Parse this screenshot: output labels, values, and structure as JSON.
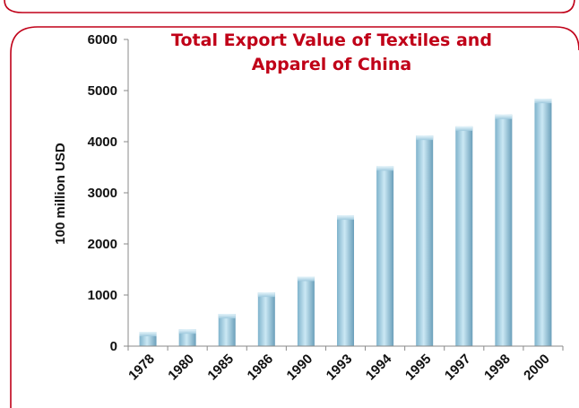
{
  "chart_data": {
    "type": "bar",
    "title_lines": [
      "Total Export Value of Textiles and",
      "Apparel of China"
    ],
    "xlabel": "",
    "ylabel": "100 million USD",
    "ylim": [
      0,
      6000
    ],
    "yticks": [
      "0",
      "1000",
      "2000",
      "3000",
      "4000",
      "5000",
      "6000"
    ],
    "categories": [
      "1978",
      "1980",
      "1985",
      "1986",
      "1990",
      "1993",
      "1994",
      "1995",
      "1997",
      "1998",
      "2000"
    ],
    "values": [
      280,
      330,
      630,
      1050,
      1360,
      2560,
      3520,
      4120,
      4300,
      4530,
      4840
    ],
    "grid": false,
    "legend": "none",
    "colors": {
      "frame": "#c00018",
      "title": "#c00018",
      "bar_light": "#c5e5f2",
      "bar_dark": "#6fa8c4",
      "axis": "#8a8a8a"
    }
  }
}
